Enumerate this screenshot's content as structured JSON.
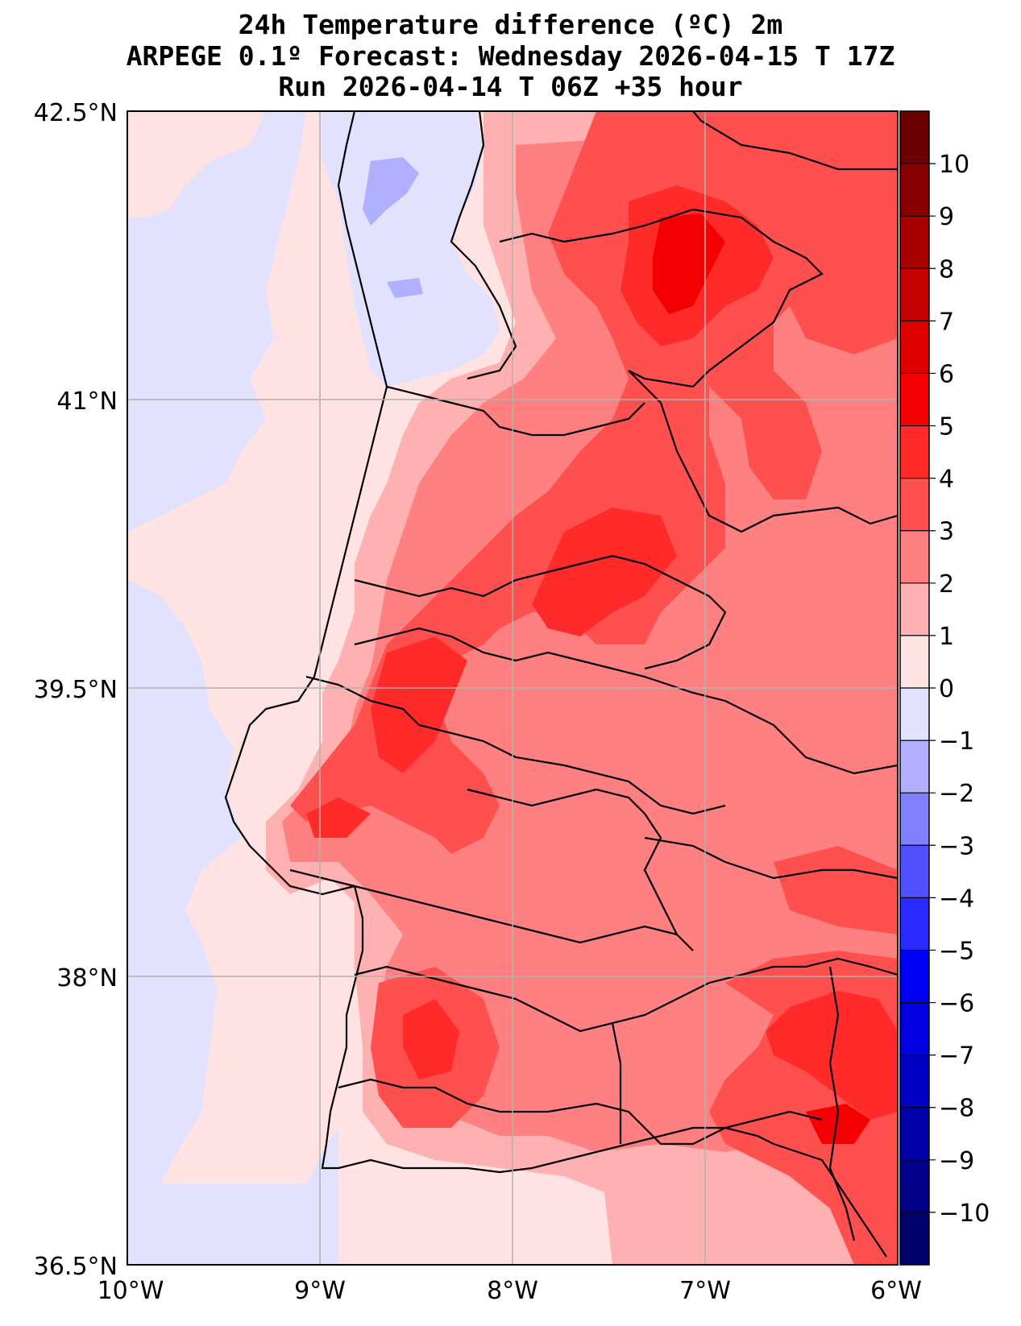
{
  "title": {
    "line1": "24h Temperature difference (ºC) 2m",
    "line2": "ARPEGE 0.1º Forecast: Wednesday 2026-04-15 T 17Z",
    "line3": "Run 2026-04-14 T 06Z +35 hour"
  },
  "axes": {
    "lon_labels": [
      "10°W",
      "9°W",
      "8°W",
      "7°W",
      "6°W"
    ],
    "lat_labels": [
      "42.5°N",
      "41°N",
      "39.5°N",
      "38°N",
      "36.5°N"
    ],
    "lon_range": [
      -10,
      -6
    ],
    "lat_range": [
      36.5,
      42.5
    ],
    "grid": true
  },
  "colorbar": {
    "tick_labels": [
      "10",
      "9",
      "8",
      "7",
      "6",
      "5",
      "4",
      "3",
      "2",
      "1",
      "0",
      "−1",
      "−2",
      "−3",
      "−4",
      "−5",
      "−6",
      "−7",
      "−8",
      "−9",
      "−10"
    ],
    "colors_top_to_bottom": [
      "#6b0000",
      "#8a0000",
      "#a80000",
      "#c40000",
      "#de0000",
      "#f40000",
      "#ff2a2a",
      "#ff5050",
      "#ff8080",
      "#ffb0b0",
      "#ffe2e2",
      "#e2e2ff",
      "#b0b0ff",
      "#8080ff",
      "#5050ff",
      "#2a2aff",
      "#0000f4",
      "#0000de",
      "#0000c4",
      "#0000a8",
      "#00008a",
      "#00006b"
    ]
  },
  "colors": {
    "ocean_west": "#e2e2ff",
    "near_coast": "#ffe2e2",
    "warm_1": "#ffb0b0",
    "warm_2": "#ff8080",
    "warm_3": "#ff5050",
    "warm_4": "#ff2a2a",
    "warm_5": "#f40000",
    "cool_1": "#b0b0ff"
  }
}
